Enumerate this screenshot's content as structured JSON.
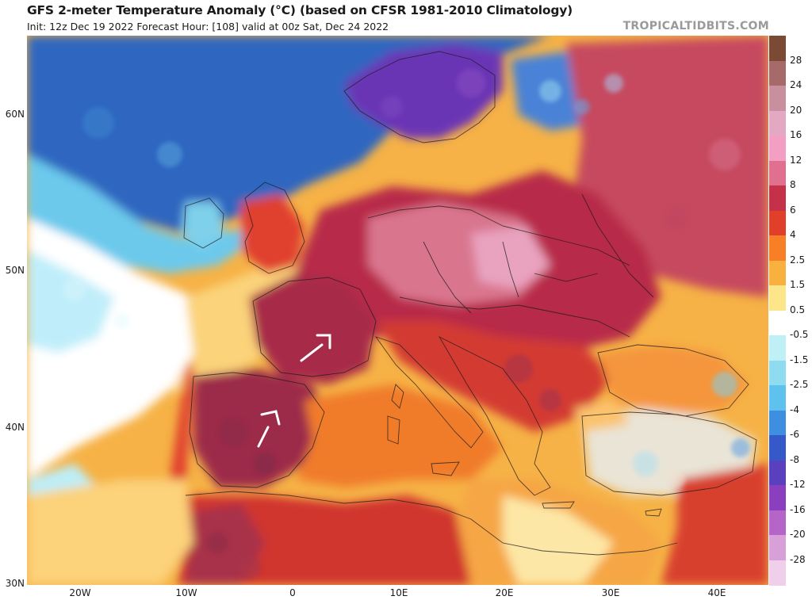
{
  "header": {
    "title": "GFS 2-meter Temperature Anomaly (°C) (based on CFSR 1981-2010 Climatology)",
    "subtitle": "Init: 12z Dec 19 2022   Forecast Hour: [108]   valid at 00z Sat, Dec 24 2022",
    "brand": "TROPICALTIDBITS.COM"
  },
  "axes": {
    "lat_labels": [
      "60N",
      "50N",
      "40N",
      "30N"
    ],
    "lon_labels": [
      "20W",
      "10W",
      "0",
      "10E",
      "20E",
      "30E",
      "40E"
    ]
  },
  "colorbar": {
    "labels": [
      "28",
      "24",
      "20",
      "16",
      "12",
      "8",
      "6",
      "4",
      "2.5",
      "1.5",
      "0.5",
      "-0.5",
      "-1.5",
      "-2.5",
      "-4",
      "-6",
      "-8",
      "-12",
      "-16",
      "-20",
      "-28"
    ],
    "colors": [
      "#7a4a34",
      "#a76a6a",
      "#c88f9e",
      "#e3a9c2",
      "#f39fc3",
      "#e0708e",
      "#c43148",
      "#e0402a",
      "#f77f26",
      "#f8b13e",
      "#fde58a",
      "#ffffff",
      "#bff0f5",
      "#8fdcf0",
      "#5ec1ee",
      "#3f8fe0",
      "#3559c8",
      "#5a3fbe",
      "#8a3fbf",
      "#b565c7",
      "#d7a0d9",
      "#efcfe9"
    ]
  },
  "annotations": {
    "arrows": [
      "arrow-france",
      "arrow-spain"
    ]
  },
  "colors": {
    "ocean_cold": "#2f6ec0",
    "ocean_cool": "#7fd2ec",
    "warm": "#d8392c",
    "very_warm": "#9c2240",
    "pink": "#e6789c",
    "purple": "#6b38b8"
  }
}
